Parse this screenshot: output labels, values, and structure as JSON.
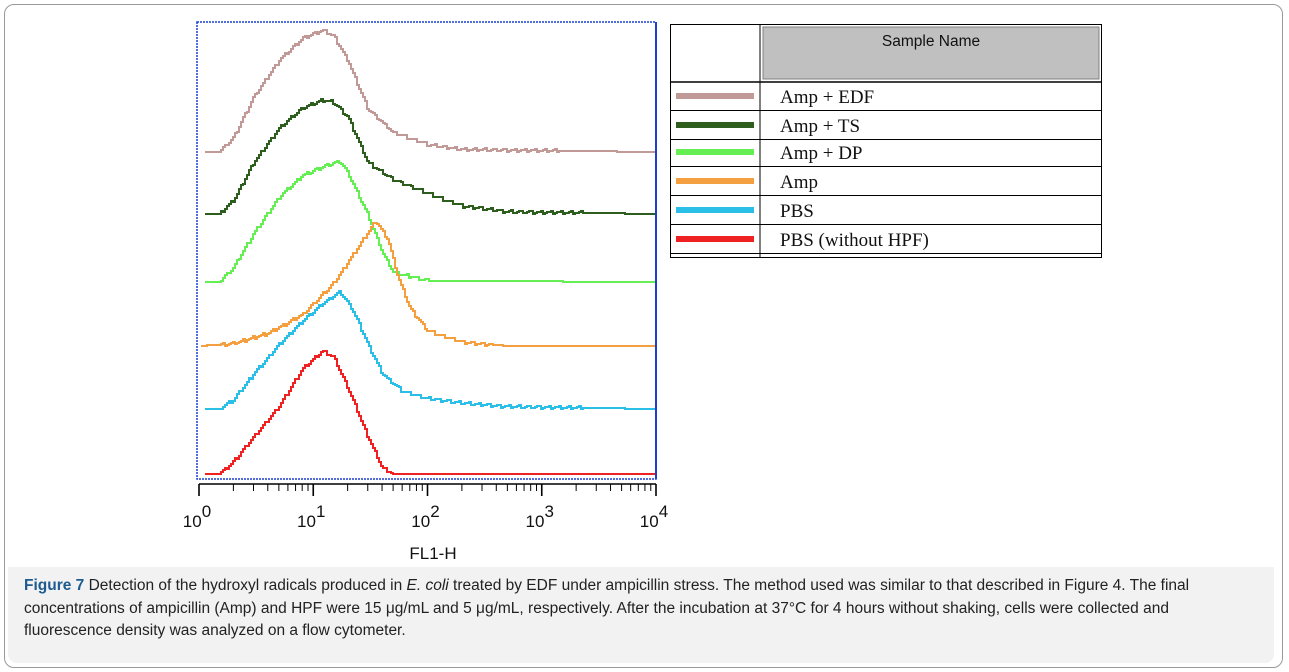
{
  "chart_data": {
    "type": "line",
    "xlabel": "FL1-H",
    "x_scale": "log",
    "xlim": [
      1,
      10000
    ],
    "x_ticks": [
      {
        "value": 1,
        "base": "10",
        "exp": "0"
      },
      {
        "value": 10,
        "base": "10",
        "exp": "1"
      },
      {
        "value": 100,
        "base": "10",
        "exp": "2"
      },
      {
        "value": 1000,
        "base": "10",
        "exp": "3"
      },
      {
        "value": 10000,
        "base": "10",
        "exp": "4"
      }
    ],
    "legend_header": "Sample Name",
    "legend_placement": "right",
    "series": [
      {
        "name": "Amp + EDF",
        "color": "#c19a98",
        "points": [
          [
            1,
            0
          ],
          [
            1.5,
            0
          ],
          [
            2,
            0.12
          ],
          [
            3,
            0.45
          ],
          [
            5,
            0.75
          ],
          [
            8,
            0.93
          ],
          [
            12,
            1.0
          ],
          [
            15,
            0.95
          ],
          [
            20,
            0.75
          ],
          [
            30,
            0.35
          ],
          [
            50,
            0.16
          ],
          [
            100,
            0.06
          ],
          [
            200,
            0.02
          ],
          [
            10000,
            0
          ]
        ]
      },
      {
        "name": "Amp + TS",
        "color": "#2e5e1e",
        "points": [
          [
            1,
            0
          ],
          [
            1.5,
            0
          ],
          [
            2,
            0.12
          ],
          [
            3,
            0.45
          ],
          [
            5,
            0.75
          ],
          [
            8,
            0.93
          ],
          [
            12,
            1.0
          ],
          [
            15,
            0.98
          ],
          [
            20,
            0.85
          ],
          [
            30,
            0.45
          ],
          [
            50,
            0.3
          ],
          [
            100,
            0.18
          ],
          [
            200,
            0.07
          ],
          [
            500,
            0.02
          ],
          [
            10000,
            0
          ]
        ]
      },
      {
        "name": "Amp + DP",
        "color": "#66ee55",
        "points": [
          [
            1,
            0
          ],
          [
            1.5,
            0
          ],
          [
            2,
            0.12
          ],
          [
            3,
            0.4
          ],
          [
            5,
            0.7
          ],
          [
            8,
            0.88
          ],
          [
            12,
            0.95
          ],
          [
            17,
            1.0
          ],
          [
            20,
            0.9
          ],
          [
            30,
            0.55
          ],
          [
            40,
            0.25
          ],
          [
            50,
            0.08
          ],
          [
            100,
            0.01
          ],
          [
            10000,
            0
          ]
        ]
      },
      {
        "name": "Amp",
        "color": "#f5a040",
        "points": [
          [
            1,
            0
          ],
          [
            2,
            0.02
          ],
          [
            4,
            0.1
          ],
          [
            8,
            0.25
          ],
          [
            15,
            0.5
          ],
          [
            25,
            0.8
          ],
          [
            35,
            1.0
          ],
          [
            45,
            0.85
          ],
          [
            55,
            0.55
          ],
          [
            70,
            0.3
          ],
          [
            100,
            0.12
          ],
          [
            200,
            0.03
          ],
          [
            500,
            0
          ],
          [
            10000,
            0
          ]
        ]
      },
      {
        "name": "PBS",
        "color": "#2bbfe8",
        "points": [
          [
            1,
            0
          ],
          [
            1.5,
            0
          ],
          [
            2,
            0.08
          ],
          [
            3,
            0.3
          ],
          [
            5,
            0.55
          ],
          [
            8,
            0.75
          ],
          [
            12,
            0.9
          ],
          [
            17,
            1.0
          ],
          [
            22,
            0.85
          ],
          [
            30,
            0.55
          ],
          [
            40,
            0.3
          ],
          [
            60,
            0.15
          ],
          [
            100,
            0.09
          ],
          [
            200,
            0.05
          ],
          [
            500,
            0.02
          ],
          [
            10000,
            0
          ]
        ]
      },
      {
        "name": "PBS (without HPF)",
        "color": "#ee2222",
        "points": [
          [
            1,
            0
          ],
          [
            1.5,
            0
          ],
          [
            2,
            0.1
          ],
          [
            3,
            0.3
          ],
          [
            5,
            0.55
          ],
          [
            8,
            0.85
          ],
          [
            12,
            1.0
          ],
          [
            15,
            0.95
          ],
          [
            20,
            0.7
          ],
          [
            30,
            0.3
          ],
          [
            40,
            0.05
          ],
          [
            50,
            0
          ],
          [
            10000,
            0
          ]
        ]
      }
    ]
  },
  "caption": {
    "label": "Figure 7",
    "text1": " Detection of the hydroxyl radicals produced in ",
    "organism": "E. coli",
    "text2": " treated by EDF under ampicillin stress. The method used was similar to that described in Figure 4. The final concentrations of ampicillin (Amp) and HPF were 15 μg/mL and 5 μg/mL, respectively. After the incubation at 37°C for 4 hours without shaking, cells were collected and fluorescence density was analyzed on a flow cytometer."
  }
}
